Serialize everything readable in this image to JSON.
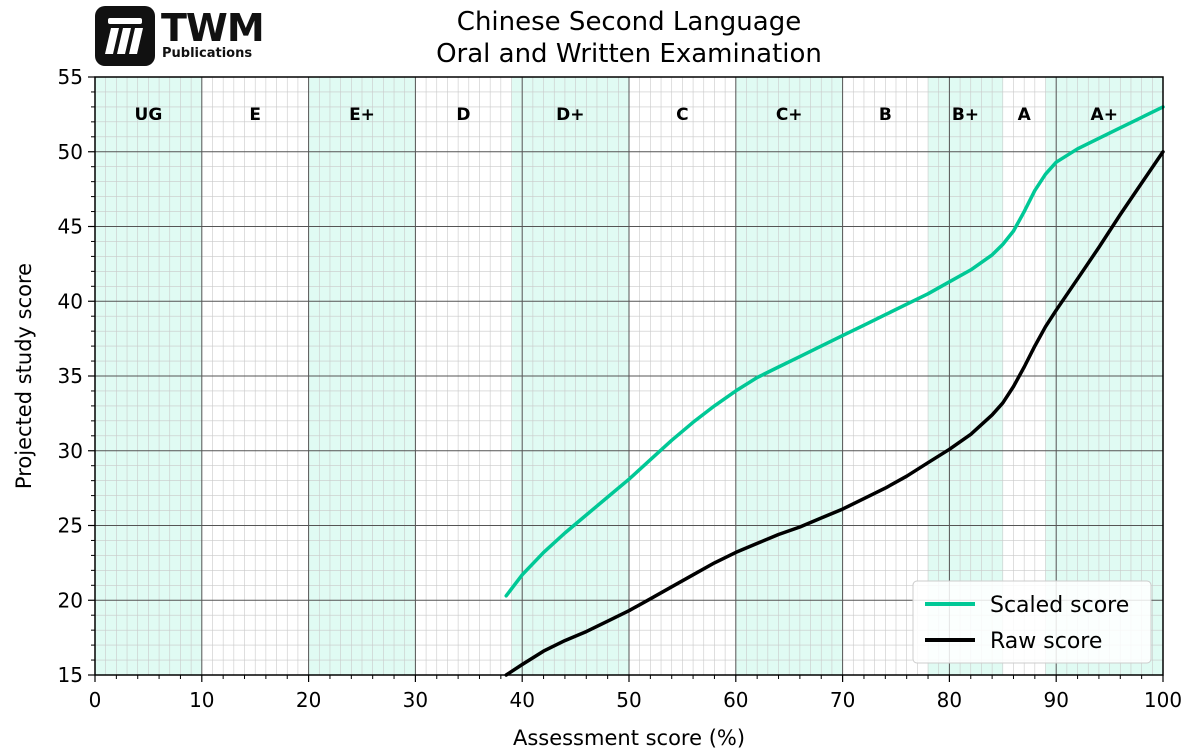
{
  "logo": {
    "name": "TWM",
    "sub": "Publications"
  },
  "chart_data": {
    "type": "line",
    "title": [
      "Chinese Second Language",
      "Oral and Written Examination"
    ],
    "xlabel": "Assessment score (%)",
    "ylabel": "Projected study score",
    "xlim": [
      0,
      100
    ],
    "ylim": [
      15,
      55
    ],
    "xticks": [
      0,
      10,
      20,
      30,
      40,
      50,
      60,
      70,
      80,
      90,
      100
    ],
    "yticks": [
      15,
      20,
      25,
      30,
      35,
      40,
      45,
      50,
      55
    ],
    "grid": true,
    "minor_grid": true,
    "legend_position": "bottom-right",
    "grade_bands": [
      {
        "label": "UG",
        "start": 0,
        "end": 10,
        "shaded": true
      },
      {
        "label": "E",
        "start": 10,
        "end": 20,
        "shaded": false
      },
      {
        "label": "E+",
        "start": 20,
        "end": 30,
        "shaded": true
      },
      {
        "label": "D",
        "start": 30,
        "end": 39,
        "shaded": false
      },
      {
        "label": "D+",
        "start": 39,
        "end": 50,
        "shaded": true
      },
      {
        "label": "C",
        "start": 50,
        "end": 60,
        "shaded": false
      },
      {
        "label": "C+",
        "start": 60,
        "end": 70,
        "shaded": true
      },
      {
        "label": "B",
        "start": 70,
        "end": 78,
        "shaded": false
      },
      {
        "label": "B+",
        "start": 78,
        "end": 85,
        "shaded": true
      },
      {
        "label": "A",
        "start": 85,
        "end": 89,
        "shaded": false
      },
      {
        "label": "A+",
        "start": 89,
        "end": 100,
        "shaded": true
      }
    ],
    "band_color": "#e0fbf3",
    "series": [
      {
        "name": "Scaled score",
        "color": "#00c896",
        "x": [
          38.5,
          40,
          42,
          44,
          46,
          48,
          50,
          52,
          54,
          56,
          58,
          60,
          62,
          64,
          66,
          68,
          70,
          72,
          74,
          76,
          78,
          80,
          82,
          84,
          85,
          86,
          87,
          88,
          89,
          90,
          92,
          94,
          96,
          98,
          100
        ],
        "y": [
          20.3,
          21.7,
          23.2,
          24.5,
          25.7,
          26.9,
          28.1,
          29.4,
          30.7,
          31.9,
          33.0,
          34.0,
          34.9,
          35.6,
          36.3,
          37.0,
          37.7,
          38.4,
          39.1,
          39.8,
          40.5,
          41.3,
          42.1,
          43.1,
          43.8,
          44.7,
          46.0,
          47.4,
          48.5,
          49.3,
          50.2,
          50.9,
          51.6,
          52.3,
          53.0
        ]
      },
      {
        "name": "Raw score",
        "color": "#000000",
        "x": [
          38.5,
          40,
          42,
          44,
          46,
          48,
          50,
          52,
          54,
          56,
          58,
          60,
          62,
          64,
          66,
          68,
          70,
          72,
          74,
          76,
          78,
          80,
          82,
          84,
          85,
          86,
          87,
          88,
          89,
          90,
          92,
          94,
          96,
          98,
          100
        ],
        "y": [
          15.0,
          15.7,
          16.6,
          17.3,
          17.9,
          18.6,
          19.3,
          20.1,
          20.9,
          21.7,
          22.5,
          23.2,
          23.8,
          24.4,
          24.9,
          25.5,
          26.1,
          26.8,
          27.5,
          28.3,
          29.2,
          30.1,
          31.1,
          32.4,
          33.2,
          34.3,
          35.6,
          37.0,
          38.3,
          39.4,
          41.5,
          43.6,
          45.8,
          47.9,
          50.0
        ]
      }
    ]
  }
}
